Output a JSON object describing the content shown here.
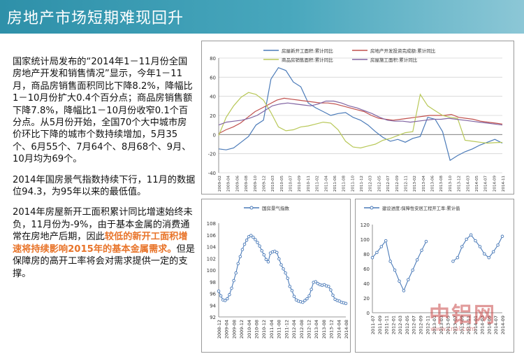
{
  "page": {
    "title": "房地产市场短期难现回升",
    "para1": "国家统计局发布的“2014年1－11月份全国房地产开发和销售情况”显示，今年1－11月，商品房销售面积同比下降8.2%，降幅比1－10月份扩大0.4个百分点；商品房销售额下降7.8%，降幅比1－10月份收窄0.1个百分点。从5月份开始，全国70个大中城市房价环比下降的城市个数持续增加，5月35个、6月55个、7月64个、8月68个、9月、10月均为69个。",
    "para2": "2014年国房景气指数持续下行，11月的数据位94.3，为95年以来的最低值。",
    "para3_a": "2014年房屋新开工面积累计同比增速始终未负，11月份为-9%，由于基本金属的消费通常在房地产后期，因此",
    "para3_hl": "较低的新开工面积增速将持续影响2015年的基本金属需求。",
    "para3_b": "但是保障房的高开工率将会对需求提供一定的支撑。",
    "watermark": "中铝网",
    "watermark_sub": "www.cnal.com"
  },
  "colors": {
    "title_bar": "#3a9cb4",
    "highlight": "#e8742a",
    "s_new_start": "#4a7ab8",
    "s_invest": "#c0504d",
    "s_sales": "#b8c858",
    "s_construct": "#8064a2",
    "s_index": "#4a7ab8",
    "s_afford": "#4a7ab8"
  },
  "chart_data": [
    {
      "type": "line",
      "y_ticks": [
        -40,
        -20,
        0,
        20,
        40,
        60,
        80
      ],
      "ylim": [
        -40,
        80
      ],
      "x_labels": [
        "2009-02",
        "2009-04",
        "2009-06",
        "2009-08",
        "2009-10",
        "2009-12",
        "2010-03",
        "2010-05",
        "2010-07",
        "2010-09",
        "2010-11",
        "2011-02",
        "2011-04",
        "2011-06",
        "2011-08",
        "2011-10",
        "2011-12",
        "2012-03",
        "2012-05",
        "2012-07",
        "2012-09",
        "2012-11",
        "2013-02",
        "2013-04",
        "2013-06",
        "2013-08",
        "2013-10",
        "2013-12",
        "2014-03",
        "2014-05",
        "2014-07",
        "2014-09",
        "2014-11"
      ],
      "series": [
        {
          "name": "房屋新开工面积:累计同比",
          "values": [
            -15,
            -16,
            -14,
            -8,
            -2,
            10,
            15,
            58,
            70,
            67,
            55,
            50,
            33,
            28,
            24,
            20,
            22,
            23,
            18,
            15,
            10,
            3,
            -3,
            -7,
            -5,
            -8,
            -4,
            -2,
            18,
            16,
            3,
            -27,
            -22,
            -18,
            -15,
            -11,
            -8,
            -5,
            -9
          ]
        },
        {
          "name": "房地产开发投资完成额:累计同比",
          "values": [
            1,
            5,
            8,
            12,
            18,
            24,
            28,
            32,
            36,
            38,
            37,
            36,
            35,
            34,
            33,
            33,
            32,
            30,
            28,
            26,
            24,
            20,
            17,
            16,
            15,
            16,
            17,
            18,
            19,
            20,
            20,
            20,
            21,
            18,
            17,
            16,
            14,
            13,
            12,
            11
          ]
        },
        {
          "name": "商品房销售面积:累计同比",
          "values": [
            -1,
            18,
            30,
            39,
            44,
            42,
            36,
            23,
            8,
            4,
            5,
            8,
            9,
            11,
            13,
            12,
            5,
            -7,
            -13,
            -14,
            -12,
            -10,
            -6,
            -4,
            -1,
            2,
            3,
            42,
            30,
            25,
            20,
            18,
            17,
            -6,
            -7,
            -8,
            -9,
            -8.5,
            -8.2
          ]
        },
        {
          "name": "房屋施工面积:累计同比",
          "values": [
            10,
            13,
            14,
            15,
            17,
            20,
            25,
            30,
            32,
            33,
            32,
            31,
            30,
            32,
            35,
            35,
            33,
            30,
            28,
            25,
            22,
            18,
            15,
            14,
            14,
            13,
            14,
            15,
            16,
            16,
            17,
            16,
            15,
            14,
            13,
            12,
            11,
            10
          ]
        }
      ]
    },
    {
      "type": "line",
      "y_ticks": [
        92,
        94,
        96,
        98,
        100,
        102,
        104,
        106,
        108
      ],
      "ylim": [
        92,
        108
      ],
      "x_labels": [
        "2008-12",
        "2009-04",
        "2009-08",
        "2009-12",
        "2010-04",
        "2010-08",
        "2010-12",
        "2011-04",
        "2011-08",
        "2011-12",
        "2012-04",
        "2012-08",
        "2012-12",
        "2013-04",
        "2013-08",
        "2013-12",
        "2014-04",
        "2014-08"
      ],
      "series": [
        {
          "name": "国房景气指数",
          "values": [
            96.4,
            95.6,
            94.9,
            94.8,
            95.1,
            95.8,
            96.9,
            98.2,
            99.5,
            101.1,
            102.3,
            103.5,
            104.4,
            105.1,
            105.7,
            105.9,
            105.6,
            105.2,
            104.7,
            104.1,
            103.3,
            102.6,
            101.8,
            101.4,
            102.9,
            103.1,
            103.2,
            103.0,
            101.9,
            100.9,
            100.2,
            99.5,
            98.6,
            97.2,
            96.5,
            95.5,
            94.9,
            94.7,
            94.6,
            94.5,
            94.8,
            95.1,
            95.6,
            96.7,
            97.9,
            98.0,
            97.7,
            97.5,
            97.4,
            97.5,
            97.3,
            97.2,
            96.6,
            95.7,
            95.0,
            94.8,
            94.7,
            94.5,
            94.4,
            94.3
          ]
        }
      ]
    },
    {
      "type": "line",
      "y_ticks": [
        0,
        20,
        40,
        60,
        80,
        100,
        120
      ],
      "ylim": [
        0,
        120
      ],
      "x_labels": [
        "2011-07",
        "2011-09",
        "2011-11",
        "2012-01",
        "2012-03",
        "2012-05",
        "2012-07",
        "2012-09",
        "2012-11",
        "2013-01",
        "2013-03",
        "2013-05",
        "2013-07",
        "2013-09",
        "2013-11",
        "2014-01",
        "2014-03",
        "2014-05",
        "2014-07",
        "2014-09"
      ],
      "series": [
        {
          "name": "建设进度:保障性安居工程开工率:累计值",
          "values": [
            75,
            82,
            90,
            98,
            70,
            58,
            43,
            30,
            45,
            58,
            72,
            85,
            97,
            null,
            null,
            null,
            null,
            null,
            70,
            75,
            90,
            100,
            106,
            98,
            90,
            80,
            75,
            83,
            92,
            104
          ]
        }
      ]
    }
  ]
}
